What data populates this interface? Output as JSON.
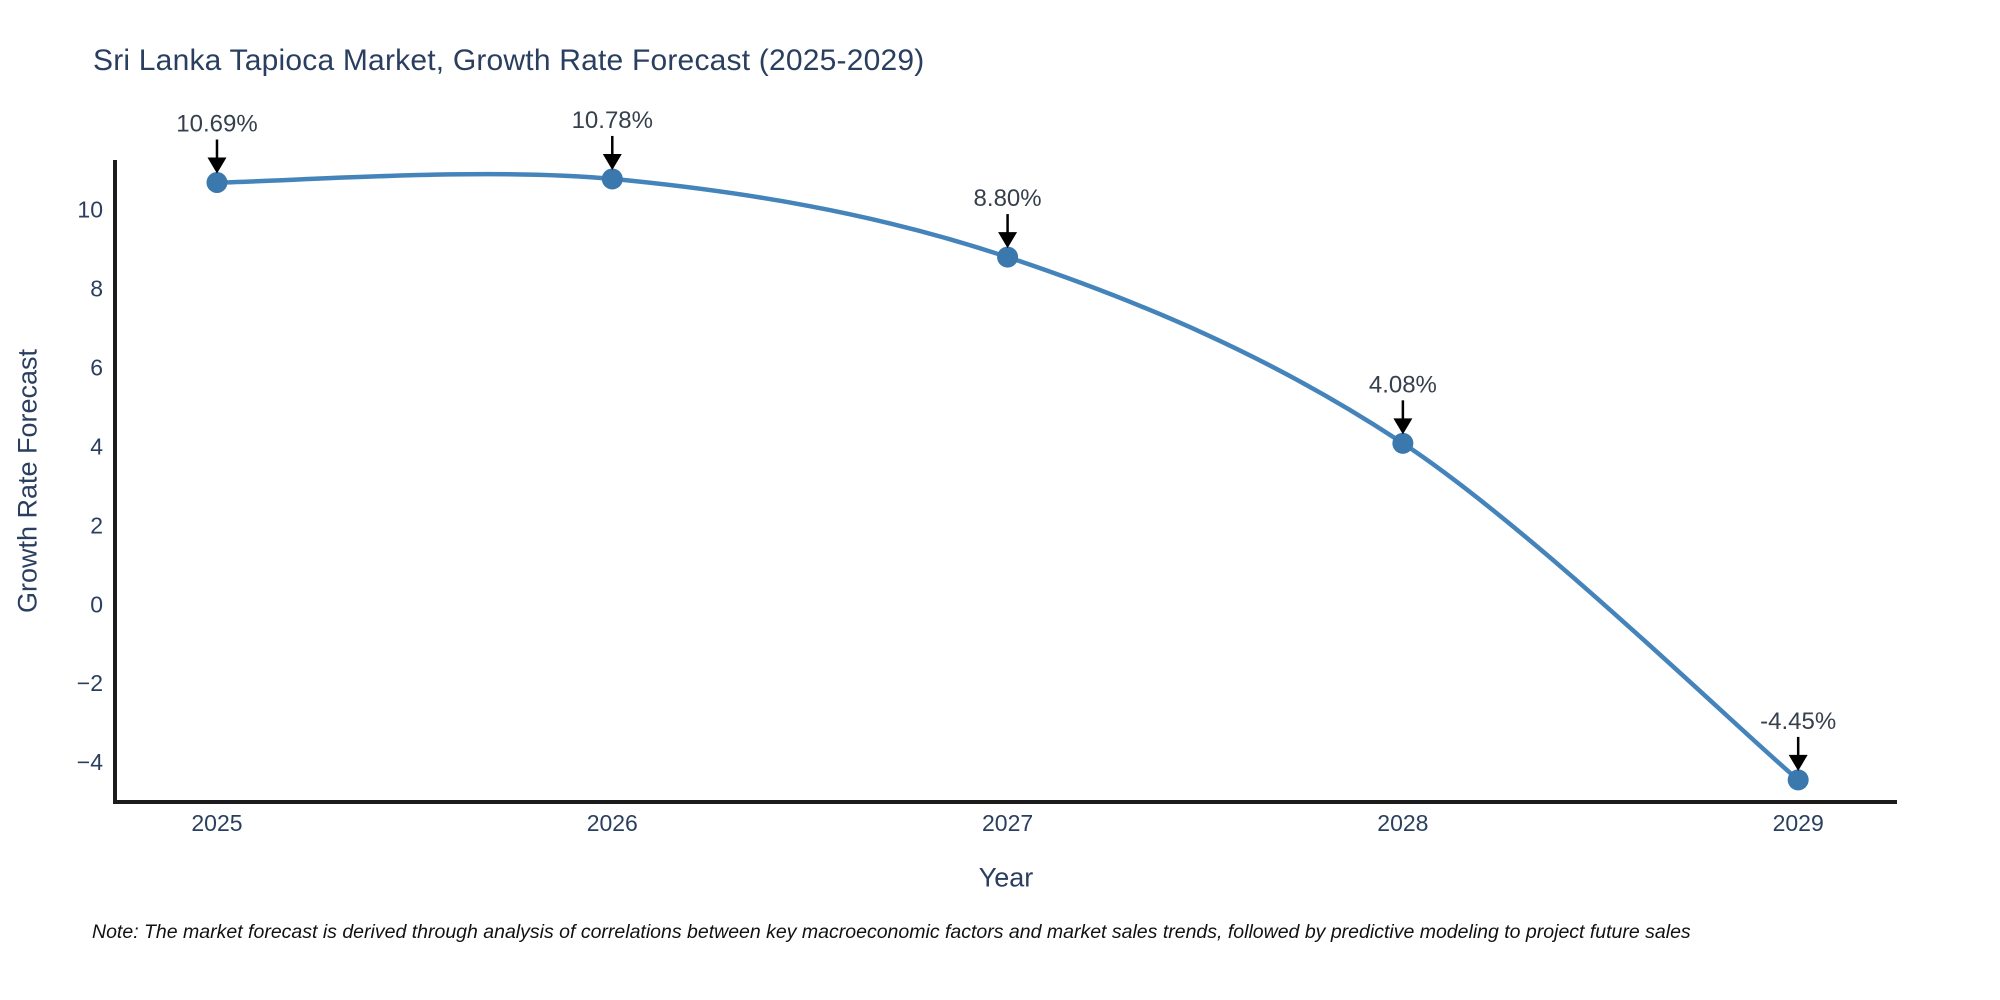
{
  "title": "Sri Lanka Tapioca Market, Growth Rate Forecast (2025-2029)",
  "note": "Note: The market forecast is derived through analysis of correlations between key macroeconomic factors and market sales trends, followed by predictive modeling to project future sales",
  "chart_data": {
    "type": "line",
    "title": "Sri Lanka Tapioca Market, Growth Rate Forecast (2025-2029)",
    "xlabel": "Year",
    "ylabel": "Growth Rate Forecast",
    "x": [
      2025,
      2026,
      2027,
      2028,
      2029
    ],
    "values": [
      10.69,
      10.78,
      8.8,
      4.08,
      -4.45
    ],
    "point_labels": [
      "10.69%",
      "10.78%",
      "8.80%",
      "4.08%",
      "-4.45%"
    ],
    "x_tick_labels": [
      "2025",
      "2026",
      "2027",
      "2028",
      "2029"
    ],
    "y_ticks": [
      10,
      8,
      6,
      4,
      2,
      0,
      -2,
      -4
    ],
    "y_tick_labels": [
      "10",
      "8",
      "6",
      "4",
      "2",
      "0",
      "−2",
      "−4"
    ],
    "xlim": [
      2024.742,
      2029.25
    ],
    "ylim": [
      -5.01,
      11.26
    ],
    "grid": false,
    "legend": "none",
    "line_shape": "spline",
    "marker": "circle",
    "annotation_style": "value label with downward black arrow to each point"
  },
  "colors": {
    "background": "#ffffff",
    "line": "#4484bb",
    "marker": "#3a78ae",
    "axis": "#1c1c1c",
    "tick_text": "#2a3f5f",
    "title_text": "#2a3f5f",
    "annotation_text": "#36404d",
    "arrow": "#000000",
    "note_text": "#111111"
  }
}
